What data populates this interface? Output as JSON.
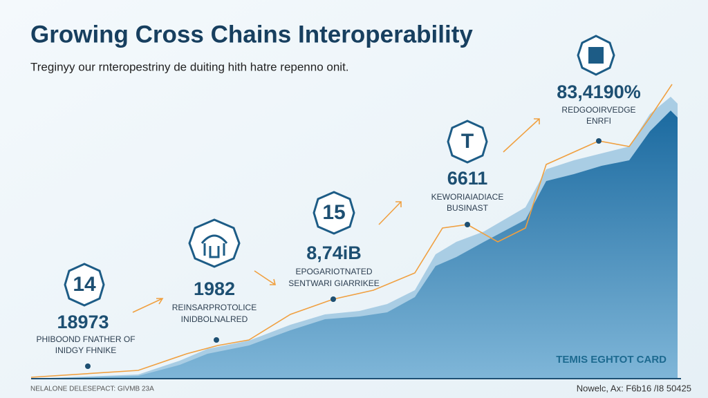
{
  "header": {
    "title": "Growing Cross Chains Interoperability",
    "subtitle": "Treginyy our rnteropestriny de duiting hith hatre repenno onit."
  },
  "milestones": [
    {
      "badge": "14",
      "value": "18973",
      "label": [
        "PHIBOOND FNATHER OF",
        "INIDGY FHNIKE"
      ]
    },
    {
      "value": "1982",
      "label": [
        "REINSARPROTOLICE",
        "INIDBOLNALRED"
      ]
    },
    {
      "badge": "15",
      "value": "8,74iB",
      "label": [
        "EPOGARIOTNATED",
        "SENTWARI GIARRIKEE"
      ]
    },
    {
      "badge": "T",
      "value": "6611",
      "label": [
        "KEWORIAIADIACE",
        "BUSINAST"
      ]
    },
    {
      "value": "83,4190%",
      "label": [
        "REDGOOIRVEDGE",
        "ENRFI"
      ]
    }
  ],
  "footer": {
    "left": "NELALONE DELESEPACT: GIVMB 23A",
    "brand": "TEMIS EGHTOT CARD",
    "date": "Nowelc, Ax: F6b16 /I8 50425"
  }
}
